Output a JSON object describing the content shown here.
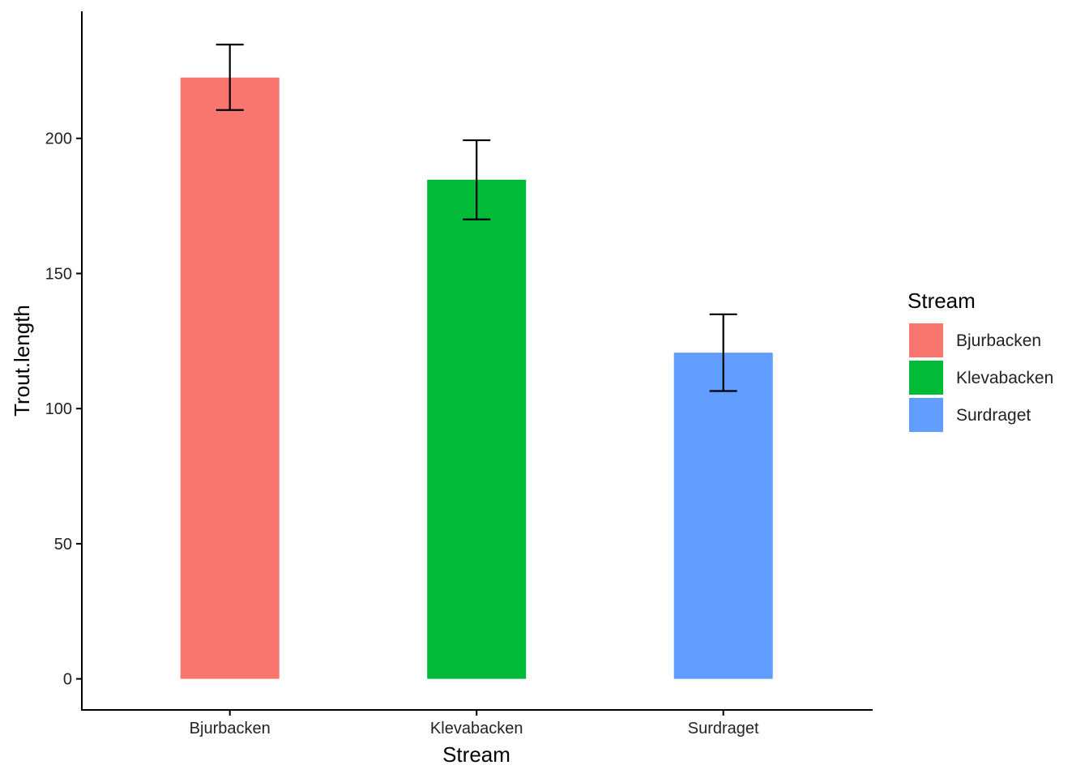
{
  "chart_data": {
    "type": "bar",
    "title": "",
    "xlabel": "Stream",
    "ylabel": "Trout.length",
    "categories": [
      "Bjurbacken",
      "Klevabacken",
      "Surdraget"
    ],
    "values": [
      222.5,
      184.7,
      120.7
    ],
    "error_low": [
      210.5,
      170.0,
      106.5
    ],
    "error_high": [
      234.7,
      199.3,
      134.9
    ],
    "colors": [
      "#F8766D",
      "#00BA38",
      "#619CFF"
    ],
    "ylim": [
      -11.5,
      247
    ],
    "yticks": [
      0,
      50,
      100,
      150,
      200
    ],
    "grid": false,
    "legend": {
      "title": "Stream",
      "position": "right",
      "entries": [
        "Bjurbacken",
        "Klevabacken",
        "Surdraget"
      ]
    }
  }
}
